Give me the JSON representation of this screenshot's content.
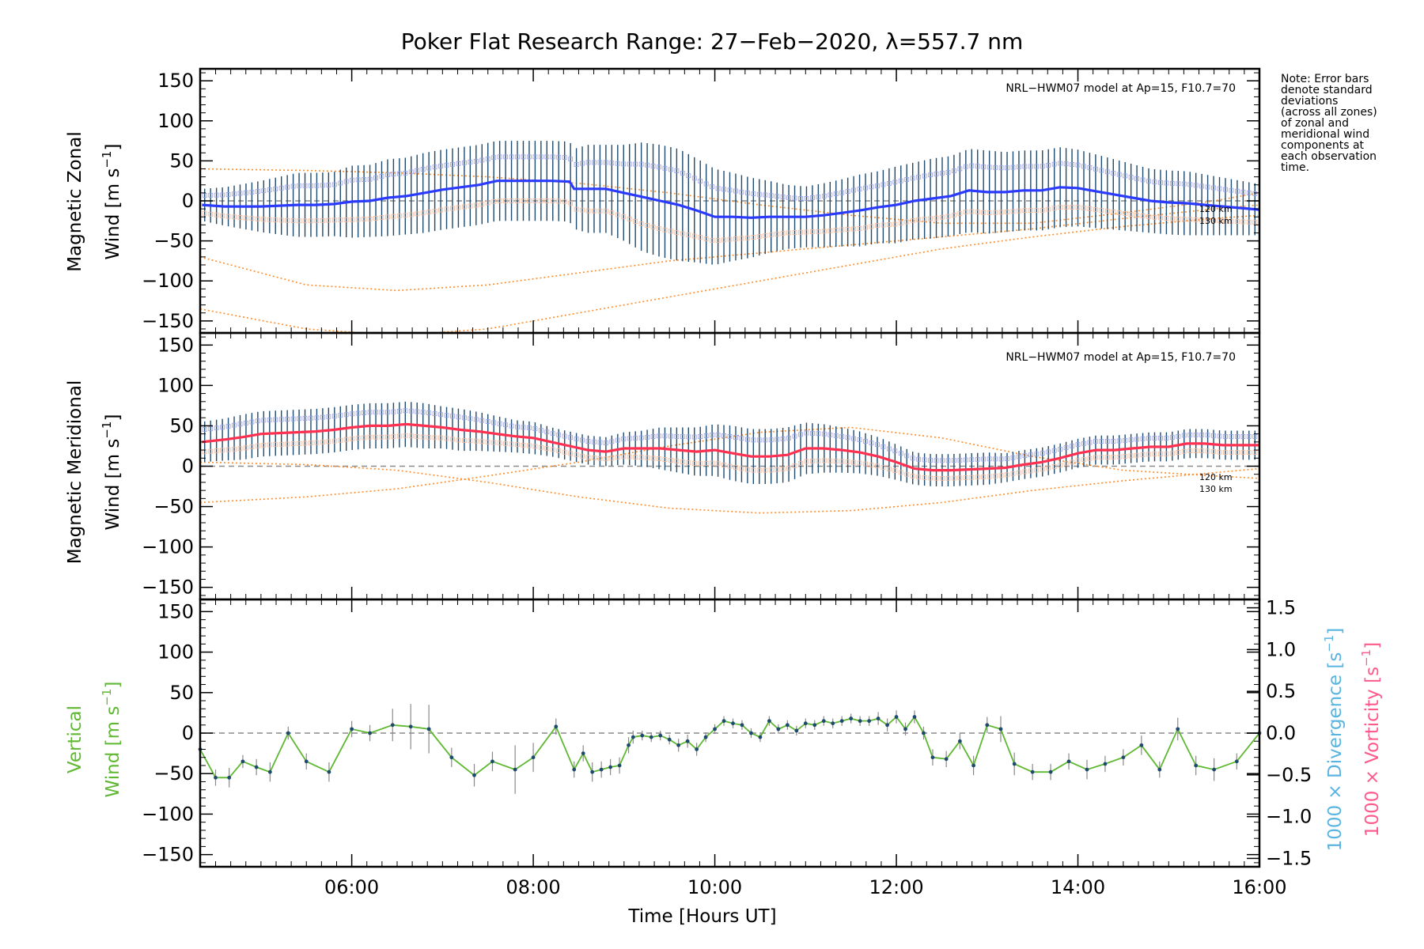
{
  "title": "Poker Flat Research Range: 27−Feb−2020, λ=557.7 nm",
  "note_lines": [
    "Note: Error bars",
    "denote standard",
    "deviations",
    "(across all zones)",
    "of zonal and",
    "meridional wind",
    "components at",
    "each observation",
    "time."
  ],
  "model_label": "NRL−HWM07 model at Ap=15, F10.7=70",
  "altitude_labels": [
    "120 km",
    "130 km"
  ],
  "x_label_main": "Time ",
  "x_label_unit": "Hours UT",
  "x_ticks": [
    "06:00",
    "08:00",
    "10:00",
    "12:00",
    "14:00",
    "16:00"
  ],
  "y_ticks": [
    "150",
    "100",
    "50",
    "0",
    "−50",
    "−100",
    "−150"
  ],
  "right_ticks": [
    "1.5",
    "1.0",
    "0.5",
    "0.0",
    "−0.5",
    "−1.0",
    "−1.5"
  ],
  "panel1": {
    "ylabel_line1": "Magnetic Zonal",
    "ylabel_line2_text": "Wind ",
    "ylabel_unit": "m s",
    "ylabel_exp": "−1"
  },
  "panel2": {
    "ylabel_line1": "Magnetic Meridional",
    "ylabel_line2_text": "Wind ",
    "ylabel_unit": "m s",
    "ylabel_exp": "−1"
  },
  "panel3": {
    "ylabel_line1": "Vertical",
    "ylabel_line2_text": "Wind ",
    "ylabel_unit": "m s",
    "ylabel_exp": "−1"
  },
  "right_labels": {
    "divergence_text": "1000 × Divergence ",
    "divergence_unit": "s",
    "divergence_exp": "−1",
    "vorticity_text": "1000 × Vorticity ",
    "vorticity_unit": "s",
    "vorticity_exp": "−1"
  },
  "colors": {
    "zonal": "#2a3bff",
    "meridional": "#ff3050",
    "vertical": "#5fb832",
    "model": "#ff8c28",
    "divergence": "#5ab4e0",
    "vorticity": "#ff5a8c",
    "errorbar": "#1e4a6e",
    "zeroline": "#8a8a8a"
  },
  "chart_data": [
    {
      "type": "line",
      "panel": "zonal",
      "title": "Poker Flat Research Range: 27−Feb−2020, λ=557.7 nm",
      "xlabel": "Time [Hours UT]",
      "ylabel": "Magnetic Zonal Wind [m s−1]",
      "xlim": [
        4.33,
        16.0
      ],
      "ylim": [
        -165,
        165
      ],
      "series": [
        {
          "x": [
            4.35,
            4.6,
            4.8,
            5.0,
            5.2,
            5.4,
            5.6,
            5.8,
            6.0,
            6.2,
            6.4,
            6.6,
            6.8,
            7.0,
            7.2,
            7.4,
            7.6,
            7.8,
            8.0,
            8.2,
            8.4,
            8.45,
            8.6,
            8.8,
            9.0,
            9.2,
            9.4,
            9.6,
            9.8,
            10.0,
            10.2,
            10.4,
            10.6,
            10.8,
            11.0,
            11.2,
            11.4,
            11.6,
            11.8,
            12.0,
            12.2,
            12.4,
            12.6,
            12.8,
            13.0,
            13.2,
            13.4,
            13.6,
            13.8,
            14.0,
            14.2,
            14.4,
            14.6,
            14.8,
            15.0,
            15.2,
            15.4,
            15.6,
            15.8,
            16.0
          ],
          "y": [
            -5,
            -7,
            -7,
            -7,
            -6,
            -5,
            -5,
            -4,
            -1,
            0,
            4,
            6,
            10,
            14,
            17,
            20,
            25,
            25,
            25,
            25,
            24,
            15,
            15,
            15,
            10,
            5,
            0,
            -5,
            -12,
            -20,
            -20,
            -21,
            -20,
            -20,
            -20,
            -18,
            -15,
            -12,
            -8,
            -5,
            0,
            3,
            6,
            13,
            11,
            11,
            13,
            13,
            17,
            16,
            12,
            8,
            4,
            0,
            -2,
            -3,
            -5,
            -7,
            -9,
            -11
          ],
          "err": [
            20,
            24,
            28,
            32,
            36,
            40,
            40,
            40,
            45,
            45,
            48,
            48,
            50,
            50,
            50,
            50,
            50,
            50,
            50,
            50,
            50,
            50,
            55,
            55,
            60,
            68,
            70,
            70,
            65,
            60,
            55,
            50,
            45,
            40,
            38,
            40,
            42,
            45,
            45,
            48,
            48,
            50,
            50,
            52,
            52,
            50,
            50,
            50,
            50,
            48,
            46,
            44,
            42,
            40,
            40,
            40,
            38,
            36,
            34,
            32
          ]
        }
      ],
      "model_curves": [
        {
          "x": [
            4.33,
            5.5,
            6.5,
            7.5,
            8.5,
            9.5,
            10.5,
            11.5,
            12.5,
            13.5,
            14.5,
            15.5,
            16.0
          ],
          "y": [
            40,
            38,
            35,
            30,
            22,
            10,
            -5,
            -18,
            -28,
            -28,
            -15,
            0,
            10
          ]
        },
        {
          "x": [
            4.33,
            5.5,
            6.5,
            7.5,
            8.5,
            9.5,
            10.5,
            11.5,
            12.5,
            13.5,
            14.5,
            15.5,
            16.0
          ],
          "y": [
            -70,
            -105,
            -112,
            -105,
            -90,
            -75,
            -65,
            -55,
            -45,
            -35,
            -22,
            -10,
            -5
          ]
        },
        {
          "x": [
            4.33,
            5.5,
            6.5,
            7.5,
            8.5,
            9.5,
            10.5,
            11.5,
            12.5,
            13.5,
            14.5,
            15.5,
            16.0
          ],
          "y": [
            -135,
            -160,
            -168,
            -160,
            -140,
            -120,
            -100,
            -80,
            -60,
            -45,
            -32,
            -22,
            -18
          ]
        }
      ]
    },
    {
      "type": "line",
      "panel": "meridional",
      "xlabel": "Time [Hours UT]",
      "ylabel": "Magnetic Meridional Wind [m s−1]",
      "xlim": [
        4.33,
        16.0
      ],
      "ylim": [
        -165,
        165
      ],
      "series": [
        {
          "x": [
            4.35,
            4.6,
            4.8,
            5.0,
            5.2,
            5.4,
            5.6,
            5.8,
            6.0,
            6.2,
            6.4,
            6.6,
            6.8,
            7.0,
            7.2,
            7.4,
            7.6,
            7.8,
            8.0,
            8.2,
            8.4,
            8.6,
            8.8,
            9.0,
            9.2,
            9.4,
            9.6,
            9.8,
            10.0,
            10.2,
            10.4,
            10.6,
            10.8,
            11.0,
            11.2,
            11.4,
            11.6,
            11.8,
            12.0,
            12.2,
            12.4,
            12.6,
            12.8,
            13.0,
            13.2,
            13.4,
            13.6,
            13.8,
            14.0,
            14.2,
            14.4,
            14.6,
            14.8,
            15.0,
            15.2,
            15.4,
            15.6,
            15.8,
            16.0
          ],
          "y": [
            30,
            33,
            36,
            40,
            41,
            42,
            43,
            45,
            48,
            50,
            50,
            52,
            50,
            48,
            45,
            43,
            40,
            37,
            35,
            30,
            25,
            20,
            18,
            22,
            22,
            22,
            20,
            18,
            20,
            16,
            12,
            12,
            14,
            22,
            22,
            20,
            17,
            12,
            5,
            -3,
            -5,
            -5,
            -4,
            -3,
            -2,
            2,
            5,
            10,
            16,
            20,
            20,
            22,
            24,
            24,
            28,
            28,
            26,
            26,
            26
          ],
          "err": [
            25,
            26,
            28,
            28,
            28,
            28,
            28,
            28,
            28,
            28,
            28,
            28,
            28,
            26,
            26,
            24,
            22,
            20,
            20,
            18,
            18,
            18,
            18,
            20,
            22,
            26,
            28,
            30,
            32,
            34,
            34,
            34,
            34,
            32,
            30,
            28,
            26,
            24,
            22,
            20,
            20,
            20,
            20,
            20,
            18,
            18,
            18,
            18,
            18,
            18,
            18,
            18,
            18,
            18,
            18,
            18,
            18,
            18,
            18
          ]
        }
      ],
      "model_curves": [
        {
          "x": [
            4.33,
            5.5,
            6.5,
            7.5,
            8.5,
            9.5,
            10.5,
            11.5,
            12.5,
            13.5,
            14.5,
            15.5,
            16.0
          ],
          "y": [
            -45,
            -38,
            -28,
            -12,
            5,
            25,
            42,
            48,
            35,
            12,
            -5,
            -12,
            -15
          ]
        },
        {
          "x": [
            4.33,
            5.5,
            6.5,
            7.5,
            8.5,
            9.5,
            10.5,
            11.5,
            12.5,
            13.5,
            14.5,
            15.5,
            16.0
          ],
          "y": [
            5,
            2,
            -5,
            -20,
            -38,
            -52,
            -58,
            -55,
            -45,
            -30,
            -18,
            -8,
            -3
          ]
        }
      ]
    },
    {
      "type": "line",
      "panel": "vertical",
      "xlabel": "Time [Hours UT]",
      "ylabel": "Vertical Wind [m s−1]",
      "y2label": "1000 × Divergence [s−1] / 1000 × Vorticity [s−1]",
      "xlim": [
        4.33,
        16.0
      ],
      "ylim": [
        -165,
        165
      ],
      "y2lim": [
        -1.6,
        1.6
      ],
      "series": [
        {
          "x": [
            4.33,
            4.5,
            4.65,
            4.8,
            4.95,
            5.1,
            5.3,
            5.5,
            5.75,
            6.0,
            6.2,
            6.45,
            6.65,
            6.85,
            7.1,
            7.35,
            7.55,
            7.8,
            8.0,
            8.25,
            8.45,
            8.55,
            8.65,
            8.75,
            8.85,
            8.95,
            9.05,
            9.1,
            9.2,
            9.3,
            9.4,
            9.5,
            9.6,
            9.7,
            9.8,
            9.9,
            10.0,
            10.1,
            10.2,
            10.3,
            10.4,
            10.5,
            10.6,
            10.7,
            10.8,
            10.9,
            11.0,
            11.1,
            11.2,
            11.3,
            11.4,
            11.5,
            11.6,
            11.7,
            11.8,
            11.9,
            12.0,
            12.1,
            12.2,
            12.3,
            12.4,
            12.55,
            12.7,
            12.85,
            13.0,
            13.15,
            13.3,
            13.5,
            13.7,
            13.9,
            14.1,
            14.3,
            14.5,
            14.7,
            14.9,
            15.1,
            15.3,
            15.5,
            15.75,
            16.0
          ],
          "y": [
            -20,
            -55,
            -55,
            -35,
            -42,
            -48,
            0,
            -35,
            -48,
            5,
            0,
            10,
            8,
            5,
            -30,
            -52,
            -35,
            -45,
            -30,
            8,
            -45,
            -25,
            -48,
            -45,
            -42,
            -40,
            -15,
            -5,
            -3,
            -5,
            -3,
            -8,
            -15,
            -10,
            -20,
            -5,
            5,
            15,
            12,
            10,
            0,
            -5,
            15,
            5,
            10,
            3,
            12,
            10,
            15,
            12,
            15,
            18,
            15,
            15,
            18,
            10,
            20,
            5,
            20,
            0,
            -30,
            -32,
            -10,
            -40,
            10,
            5,
            -38,
            -48,
            -48,
            -35,
            -45,
            -38,
            -30,
            -15,
            -45,
            5,
            -40,
            -45,
            -35,
            0
          ],
          "err": [
            10,
            10,
            12,
            8,
            10,
            12,
            8,
            10,
            12,
            10,
            10,
            20,
            28,
            30,
            12,
            14,
            12,
            30,
            18,
            10,
            10,
            10,
            12,
            10,
            10,
            10,
            10,
            8,
            6,
            6,
            6,
            6,
            8,
            8,
            8,
            6,
            6,
            6,
            6,
            6,
            6,
            6,
            6,
            6,
            6,
            6,
            6,
            6,
            6,
            6,
            6,
            6,
            6,
            6,
            8,
            8,
            8,
            8,
            8,
            8,
            10,
            10,
            10,
            12,
            10,
            16,
            14,
            10,
            10,
            10,
            12,
            10,
            10,
            12,
            10,
            14,
            12,
            14,
            10,
            20
          ]
        }
      ]
    }
  ]
}
